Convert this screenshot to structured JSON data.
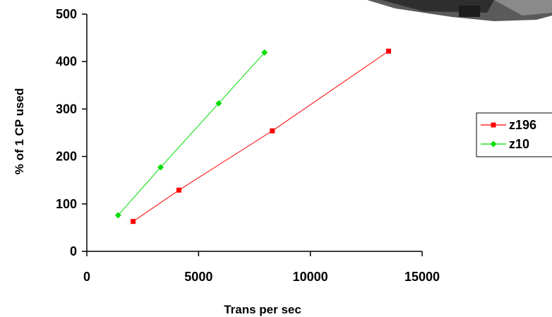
{
  "chart_data": {
    "type": "scatter",
    "title": "",
    "xlabel": "Trans per sec",
    "ylabel": "% of 1 CP used",
    "xlim": [
      0,
      15000
    ],
    "ylim": [
      0,
      500
    ],
    "x_ticks": [
      "0",
      "5000",
      "10000",
      "15000"
    ],
    "y_ticks": [
      "0",
      "100",
      "200",
      "300",
      "400",
      "500"
    ],
    "grid": false,
    "legend_position": "right",
    "series": [
      {
        "name": "z196",
        "color": "#ff0000",
        "marker": "square",
        "points": [
          {
            "x": 2070,
            "y": 63
          },
          {
            "x": 4120,
            "y": 129
          },
          {
            "x": 8300,
            "y": 254
          },
          {
            "x": 13500,
            "y": 422
          }
        ]
      },
      {
        "name": "z10",
        "color": "#00dd00",
        "marker": "diamond",
        "points": [
          {
            "x": 1400,
            "y": 76
          },
          {
            "x": 3300,
            "y": 177
          },
          {
            "x": 5900,
            "y": 312
          },
          {
            "x": 7950,
            "y": 419
          }
        ]
      }
    ]
  }
}
